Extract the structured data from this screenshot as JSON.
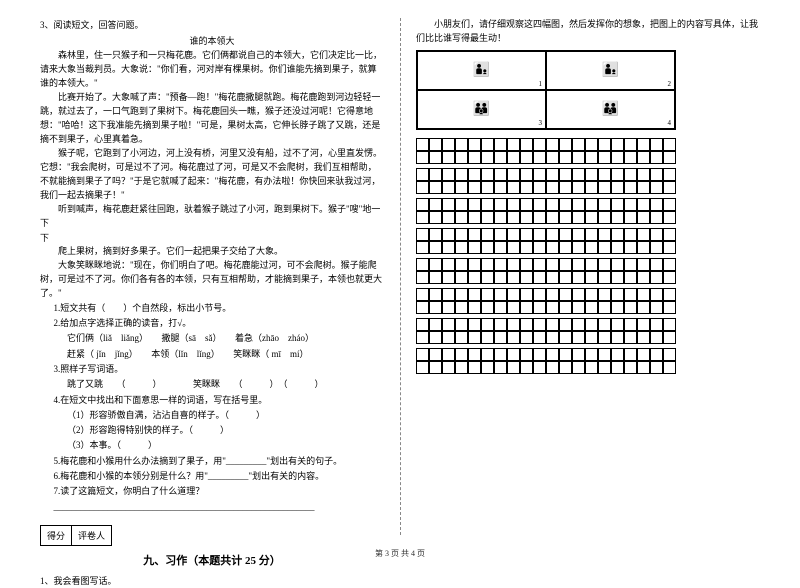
{
  "left": {
    "q3": "3、阅读短文，回答问题。",
    "story_title": "谁的本领大",
    "p1": "森林里，住一只猴子和一只梅花鹿。它们俩都说自己的本领大，它们决定比一比，请来大象当裁判员。大象说：\"你们看，河对岸有棵果树。你们谁能先摘到果子，就算谁的本领大。\"",
    "p2": "比赛开始了。大象喊了声：\"预备—跑！\"梅花鹿撒腿就跑。梅花鹿跑到河边轻轻一跳，就过去了，一口气跑到了果树下。梅花鹿回头一瞧，猴子还没过河呢！它得意地想：\"哈哈！这下我准能先摘到果子啦！\"可是，果树太高，它伸长脖子跳了又跳，还是摘不到果子，心里真着急。",
    "p3": "猴子呢，它跑到了小河边，河上没有桥，河里又没有船，过不了河，心里直发愣。它想：\"我会爬树，可是过不了河。梅花鹿过了河，可是又不会爬树，我们互相帮助，不就能摘到果子了吗？\"于是它就喊了起来：\"梅花鹿，有办法啦！你快回来驮我过河，我们一起去摘果子！\"",
    "p4": "听到喊声，梅花鹿赶紧往回跑，驮着猴子跳过了小河，跑到果树下。猴子\"嗖\"地一下",
    "p5": "爬上果树，摘到好多果子。它们一起把果子交给了大象。",
    "p6": "大象笑眯眯地说：\"现在，你们明白了吧。梅花鹿能过河，可不会爬树。猴子能爬树，可是过不了河。你们各有各的本领，只有互相帮助，才能摘到果子，本领也就更大了。\"",
    "s1": "1.短文共有（　　）个自然段，标出小节号。",
    "s2": "2.给加点字选择正确的读音，打√。",
    "s2a": "它们俩（liǎ　liǎng）　　撒腿（sā　sǎ）　　着急（zhāo　zháo）",
    "s2b": "赶紧（ jǐn　jǐng）　　本领（lǐn　lǐng）　　笑眯眯（ mī　mí）",
    "s3": "3.照样子写词语。",
    "s3a": "跳了又跳　　（　　　）　　　　笑眯眯　　（　　　）　（　　　）",
    "s4": "4.在短文中找出和下面意思一样的词语，写在括号里。",
    "s4a": "（1）形容骄傲自满，沾沾自喜的样子。（　　　）",
    "s4b": "（2）形容跑得特别快的样子。（　　　）",
    "s4c": "（3）本事。（　　　）",
    "s5": "5.梅花鹿和小猴用什么办法摘到了果子，用\"_________\"划出有关的句子。",
    "s6": "6.梅花鹿和小猴的本领分别是什么？用\"_________\"划出有关的内容。",
    "s7": "7.读了这篇短文，你明白了什么道理？",
    "blank_line": "__________________________________________________________",
    "score_label1": "得分",
    "score_label2": "评卷人",
    "section9": "九、习作（本题共计 25 分）",
    "q1b": "1、我会看图写话。"
  },
  "right": {
    "intro": "小朋友们，请仔细观察这四幅图，然后发挥你的想象，把图上的内容写具体，让我们比比谁写得最生动！",
    "pic_nums": [
      "1",
      "2",
      "3",
      "4"
    ]
  },
  "grid": {
    "rows": 16,
    "cols": 20
  },
  "footer": "第 3 页  共 4 页"
}
